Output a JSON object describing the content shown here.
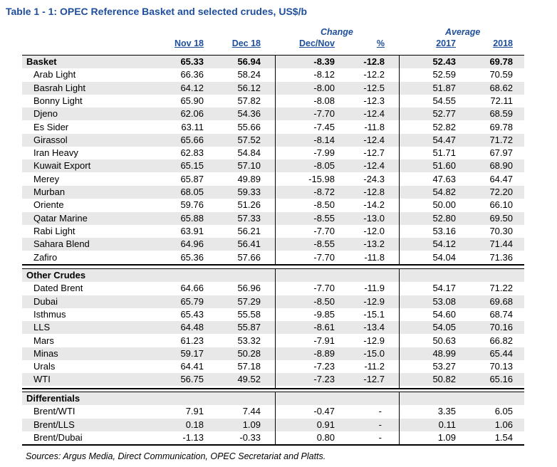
{
  "title": "Table 1 - 1: OPEC Reference Basket and selected crudes, US$/b",
  "group_headers": {
    "change": "Change",
    "average": "Average"
  },
  "columns": [
    "Nov 18",
    "Dec 18",
    "Dec/Nov",
    "%",
    "2017",
    "2018"
  ],
  "sections": [
    {
      "name": "Basket",
      "values": [
        "65.33",
        "56.94",
        "-8.39",
        "-12.8",
        "52.43",
        "69.78"
      ],
      "rows": [
        {
          "name": "Arab Light",
          "values": [
            "66.36",
            "58.24",
            "-8.12",
            "-12.2",
            "52.59",
            "70.59"
          ]
        },
        {
          "name": "Basrah Light",
          "values": [
            "64.12",
            "56.12",
            "-8.00",
            "-12.5",
            "51.87",
            "68.62"
          ]
        },
        {
          "name": "Bonny Light",
          "values": [
            "65.90",
            "57.82",
            "-8.08",
            "-12.3",
            "54.55",
            "72.11"
          ]
        },
        {
          "name": "Djeno",
          "values": [
            "62.06",
            "54.36",
            "-7.70",
            "-12.4",
            "52.77",
            "68.59"
          ]
        },
        {
          "name": "Es Sider",
          "values": [
            "63.11",
            "55.66",
            "-7.45",
            "-11.8",
            "52.82",
            "69.78"
          ]
        },
        {
          "name": "Girassol",
          "values": [
            "65.66",
            "57.52",
            "-8.14",
            "-12.4",
            "54.47",
            "71.72"
          ]
        },
        {
          "name": "Iran Heavy",
          "values": [
            "62.83",
            "54.84",
            "-7.99",
            "-12.7",
            "51.71",
            "67.97"
          ]
        },
        {
          "name": "Kuwait Export",
          "values": [
            "65.15",
            "57.10",
            "-8.05",
            "-12.4",
            "51.60",
            "68.90"
          ]
        },
        {
          "name": "Merey",
          "values": [
            "65.87",
            "49.89",
            "-15.98",
            "-24.3",
            "47.63",
            "64.47"
          ]
        },
        {
          "name": "Murban",
          "values": [
            "68.05",
            "59.33",
            "-8.72",
            "-12.8",
            "54.82",
            "72.20"
          ]
        },
        {
          "name": "Oriente",
          "values": [
            "59.76",
            "51.26",
            "-8.50",
            "-14.2",
            "50.00",
            "66.10"
          ]
        },
        {
          "name": "Qatar Marine",
          "values": [
            "65.88",
            "57.33",
            "-8.55",
            "-13.0",
            "52.80",
            "69.50"
          ]
        },
        {
          "name": "Rabi Light",
          "values": [
            "63.91",
            "56.21",
            "-7.70",
            "-12.0",
            "53.16",
            "70.30"
          ]
        },
        {
          "name": "Sahara Blend",
          "values": [
            "64.96",
            "56.41",
            "-8.55",
            "-13.2",
            "54.12",
            "71.44"
          ]
        },
        {
          "name": "Zafiro",
          "values": [
            "65.36",
            "57.66",
            "-7.70",
            "-11.8",
            "54.04",
            "71.36"
          ]
        }
      ]
    },
    {
      "name": "Other Crudes",
      "values": null,
      "rows": [
        {
          "name": "Dated Brent",
          "values": [
            "64.66",
            "56.96",
            "-7.70",
            "-11.9",
            "54.17",
            "71.22"
          ]
        },
        {
          "name": "Dubai",
          "values": [
            "65.79",
            "57.29",
            "-8.50",
            "-12.9",
            "53.08",
            "69.68"
          ]
        },
        {
          "name": "Isthmus",
          "values": [
            "65.43",
            "55.58",
            "-9.85",
            "-15.1",
            "54.60",
            "68.74"
          ]
        },
        {
          "name": "LLS",
          "values": [
            "64.48",
            "55.87",
            "-8.61",
            "-13.4",
            "54.05",
            "70.16"
          ]
        },
        {
          "name": "Mars",
          "values": [
            "61.23",
            "53.32",
            "-7.91",
            "-12.9",
            "50.63",
            "66.82"
          ]
        },
        {
          "name": "Minas",
          "values": [
            "59.17",
            "50.28",
            "-8.89",
            "-15.0",
            "48.99",
            "65.44"
          ]
        },
        {
          "name": "Urals",
          "values": [
            "64.41",
            "57.18",
            "-7.23",
            "-11.2",
            "53.27",
            "70.13"
          ]
        },
        {
          "name": "WTI",
          "values": [
            "56.75",
            "49.52",
            "-7.23",
            "-12.7",
            "50.82",
            "65.16"
          ]
        }
      ]
    },
    {
      "name": "Differentials",
      "values": null,
      "rows": [
        {
          "name": "Brent/WTI",
          "values": [
            "7.91",
            "7.44",
            "-0.47",
            "-",
            "3.35",
            "6.05"
          ]
        },
        {
          "name": "Brent/LLS",
          "values": [
            "0.18",
            "1.09",
            "0.91",
            "-",
            "0.11",
            "1.06"
          ]
        },
        {
          "name": "Brent/Dubai",
          "values": [
            "-1.13",
            "-0.33",
            "0.80",
            "-",
            "1.09",
            "1.54"
          ]
        }
      ]
    }
  ],
  "source": "Sources:  Argus Media, Direct Communication, OPEC Secretariat and Platts."
}
